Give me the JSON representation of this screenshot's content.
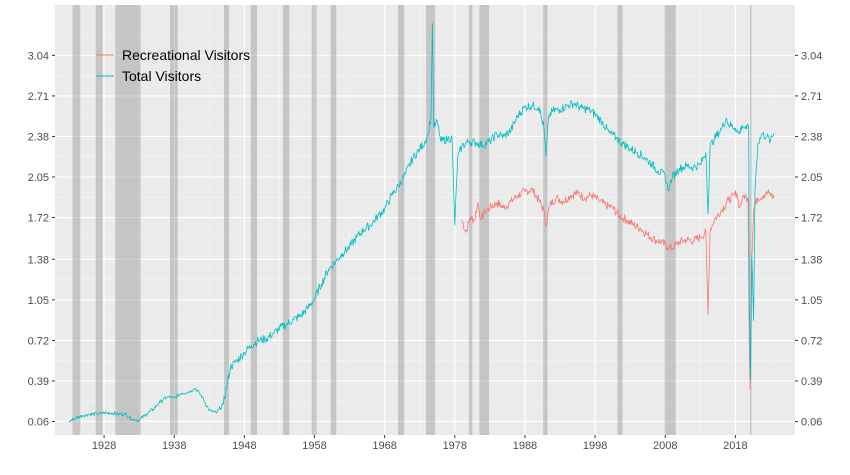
{
  "chart_data": {
    "type": "line",
    "title": "",
    "xlabel": "",
    "ylabel": "",
    "xlim": [
      1921,
      2026.5
    ],
    "ylim": [
      -0.05,
      3.45
    ],
    "x_ticks": [
      1928,
      1938,
      1948,
      1958,
      1968,
      1978,
      1988,
      1998,
      2008,
      2018
    ],
    "y_ticks": [
      0.06,
      0.39,
      0.72,
      1.05,
      1.38,
      1.72,
      2.05,
      2.38,
      2.71,
      3.04
    ],
    "y_tick_labels": [
      "0.06",
      "0.39",
      "0.72",
      "1.05",
      "1.38",
      "1.72",
      "2.05",
      "2.38",
      "2.71",
      "3.04"
    ],
    "y_axis_sides": [
      "left",
      "right"
    ],
    "grid": true,
    "legend_position": "top-left",
    "recession_bands": [
      [
        1923.5,
        1924.6
      ],
      [
        1926.8,
        1927.8
      ],
      [
        1929.6,
        1933.2
      ],
      [
        1937.4,
        1938.5
      ],
      [
        1945.1,
        1945.8
      ],
      [
        1948.9,
        1949.8
      ],
      [
        1953.5,
        1954.4
      ],
      [
        1957.6,
        1958.3
      ],
      [
        1960.3,
        1961.1
      ],
      [
        1969.9,
        1970.8
      ],
      [
        1973.9,
        1975.2
      ],
      [
        1980.0,
        1980.5
      ],
      [
        1981.5,
        1982.9
      ],
      [
        1990.6,
        1991.2
      ],
      [
        2001.2,
        2001.9
      ],
      [
        2007.9,
        2009.5
      ],
      [
        2020.1,
        2020.3
      ]
    ],
    "series": [
      {
        "name": "Recreational Visitors",
        "color": "#F8766D",
        "points": [
          [
            1979.0,
            1.7
          ],
          [
            1979.6,
            1.6
          ],
          [
            1980.2,
            1.72
          ],
          [
            1980.8,
            1.7
          ],
          [
            1981.3,
            1.84
          ],
          [
            1981.7,
            1.7
          ],
          [
            1982.3,
            1.77
          ],
          [
            1983.0,
            1.8
          ],
          [
            1984.0,
            1.84
          ],
          [
            1985.0,
            1.8
          ],
          [
            1986.0,
            1.85
          ],
          [
            1987.0,
            1.9
          ],
          [
            1988.0,
            1.93
          ],
          [
            1989.0,
            1.95
          ],
          [
            1990.0,
            1.86
          ],
          [
            1990.7,
            1.78
          ],
          [
            1991.0,
            1.65
          ],
          [
            1991.5,
            1.82
          ],
          [
            1992.5,
            1.88
          ],
          [
            1993.5,
            1.85
          ],
          [
            1994.5,
            1.9
          ],
          [
            1995.5,
            1.92
          ],
          [
            1996.5,
            1.88
          ],
          [
            1997.5,
            1.9
          ],
          [
            1998.5,
            1.86
          ],
          [
            1999.5,
            1.82
          ],
          [
            2000.5,
            1.8
          ],
          [
            2001.5,
            1.73
          ],
          [
            2002.5,
            1.7
          ],
          [
            2003.5,
            1.66
          ],
          [
            2004.5,
            1.63
          ],
          [
            2005.5,
            1.58
          ],
          [
            2006.5,
            1.54
          ],
          [
            2007.5,
            1.52
          ],
          [
            2008.3,
            1.48
          ],
          [
            2009.0,
            1.47
          ],
          [
            2010.0,
            1.52
          ],
          [
            2011.0,
            1.54
          ],
          [
            2012.0,
            1.53
          ],
          [
            2013.0,
            1.56
          ],
          [
            2013.8,
            1.6
          ],
          [
            2014.1,
            0.93
          ],
          [
            2014.4,
            1.62
          ],
          [
            2015.0,
            1.7
          ],
          [
            2016.0,
            1.78
          ],
          [
            2017.0,
            1.86
          ],
          [
            2017.8,
            1.9
          ],
          [
            2018.2,
            1.92
          ],
          [
            2018.6,
            1.8
          ],
          [
            2019.2,
            1.9
          ],
          [
            2019.8,
            1.88
          ],
          [
            2020.0,
            0.6
          ],
          [
            2020.1,
            0.32
          ],
          [
            2020.3,
            1.35
          ],
          [
            2020.6,
            1.78
          ],
          [
            2021.2,
            1.88
          ],
          [
            2022.0,
            1.9
          ],
          [
            2022.8,
            1.92
          ],
          [
            2023.5,
            1.88
          ]
        ]
      },
      {
        "name": "Total Visitors",
        "color": "#00BFC4",
        "points": [
          [
            1923.0,
            0.06
          ],
          [
            1924.0,
            0.09
          ],
          [
            1925.0,
            0.11
          ],
          [
            1926.0,
            0.12
          ],
          [
            1927.0,
            0.12
          ],
          [
            1928.0,
            0.13
          ],
          [
            1929.0,
            0.13
          ],
          [
            1930.0,
            0.12
          ],
          [
            1931.0,
            0.12
          ],
          [
            1932.0,
            0.08
          ],
          [
            1933.0,
            0.07
          ],
          [
            1934.0,
            0.12
          ],
          [
            1935.0,
            0.16
          ],
          [
            1936.0,
            0.22
          ],
          [
            1937.0,
            0.26
          ],
          [
            1938.0,
            0.25
          ],
          [
            1939.0,
            0.29
          ],
          [
            1940.0,
            0.3
          ],
          [
            1941.0,
            0.33
          ],
          [
            1942.0,
            0.26
          ],
          [
            1943.0,
            0.15
          ],
          [
            1944.0,
            0.13
          ],
          [
            1945.0,
            0.2
          ],
          [
            1946.0,
            0.5
          ],
          [
            1947.0,
            0.56
          ],
          [
            1948.0,
            0.62
          ],
          [
            1949.0,
            0.68
          ],
          [
            1950.0,
            0.72
          ],
          [
            1951.0,
            0.73
          ],
          [
            1952.0,
            0.77
          ],
          [
            1953.0,
            0.82
          ],
          [
            1954.0,
            0.85
          ],
          [
            1955.0,
            0.89
          ],
          [
            1956.0,
            0.92
          ],
          [
            1957.0,
            0.98
          ],
          [
            1958.0,
            1.06
          ],
          [
            1959.0,
            1.18
          ],
          [
            1960.0,
            1.3
          ],
          [
            1961.0,
            1.36
          ],
          [
            1962.0,
            1.43
          ],
          [
            1963.0,
            1.48
          ],
          [
            1964.0,
            1.56
          ],
          [
            1965.0,
            1.62
          ],
          [
            1966.0,
            1.66
          ],
          [
            1967.0,
            1.73
          ],
          [
            1968.0,
            1.79
          ],
          [
            1969.0,
            1.9
          ],
          [
            1970.0,
            1.98
          ],
          [
            1971.0,
            2.08
          ],
          [
            1972.0,
            2.2
          ],
          [
            1973.0,
            2.28
          ],
          [
            1973.7,
            2.33
          ],
          [
            1974.2,
            2.4
          ],
          [
            1974.6,
            2.55
          ],
          [
            1974.8,
            3.3
          ],
          [
            1975.0,
            2.45
          ],
          [
            1975.5,
            2.5
          ],
          [
            1976.0,
            2.34
          ],
          [
            1977.0,
            2.36
          ],
          [
            1977.6,
            2.37
          ],
          [
            1978.0,
            1.66
          ],
          [
            1978.4,
            2.2
          ],
          [
            1979.0,
            2.3
          ],
          [
            1980.0,
            2.34
          ],
          [
            1981.0,
            2.33
          ],
          [
            1982.0,
            2.31
          ],
          [
            1983.0,
            2.34
          ],
          [
            1984.0,
            2.4
          ],
          [
            1985.0,
            2.38
          ],
          [
            1986.0,
            2.43
          ],
          [
            1987.0,
            2.55
          ],
          [
            1988.0,
            2.62
          ],
          [
            1989.0,
            2.63
          ],
          [
            1990.0,
            2.62
          ],
          [
            1990.7,
            2.45
          ],
          [
            1991.0,
            2.22
          ],
          [
            1991.4,
            2.55
          ],
          [
            1992.0,
            2.59
          ],
          [
            1993.0,
            2.6
          ],
          [
            1994.0,
            2.63
          ],
          [
            1995.0,
            2.65
          ],
          [
            1996.0,
            2.61
          ],
          [
            1997.0,
            2.6
          ],
          [
            1998.0,
            2.56
          ],
          [
            1999.0,
            2.5
          ],
          [
            2000.0,
            2.41
          ],
          [
            2001.0,
            2.37
          ],
          [
            2002.0,
            2.32
          ],
          [
            2003.0,
            2.28
          ],
          [
            2004.0,
            2.25
          ],
          [
            2005.0,
            2.21
          ],
          [
            2006.0,
            2.16
          ],
          [
            2007.0,
            2.1
          ],
          [
            2008.0,
            2.06
          ],
          [
            2008.4,
            1.94
          ],
          [
            2009.0,
            2.05
          ],
          [
            2010.0,
            2.12
          ],
          [
            2011.0,
            2.14
          ],
          [
            2012.0,
            2.13
          ],
          [
            2013.0,
            2.15
          ],
          [
            2013.8,
            2.25
          ],
          [
            2014.1,
            1.75
          ],
          [
            2014.4,
            2.3
          ],
          [
            2015.0,
            2.36
          ],
          [
            2016.0,
            2.44
          ],
          [
            2016.7,
            2.53
          ],
          [
            2017.0,
            2.48
          ],
          [
            2018.0,
            2.45
          ],
          [
            2018.5,
            2.4
          ],
          [
            2019.0,
            2.47
          ],
          [
            2019.6,
            2.44
          ],
          [
            2019.9,
            2.46
          ],
          [
            2020.0,
            1.1
          ],
          [
            2020.15,
            0.4
          ],
          [
            2020.35,
            1.4
          ],
          [
            2020.6,
            0.88
          ],
          [
            2020.8,
            1.95
          ],
          [
            2021.2,
            2.32
          ],
          [
            2021.8,
            2.4
          ],
          [
            2022.5,
            2.38
          ],
          [
            2023.0,
            2.34
          ],
          [
            2023.5,
            2.41
          ]
        ]
      }
    ]
  }
}
